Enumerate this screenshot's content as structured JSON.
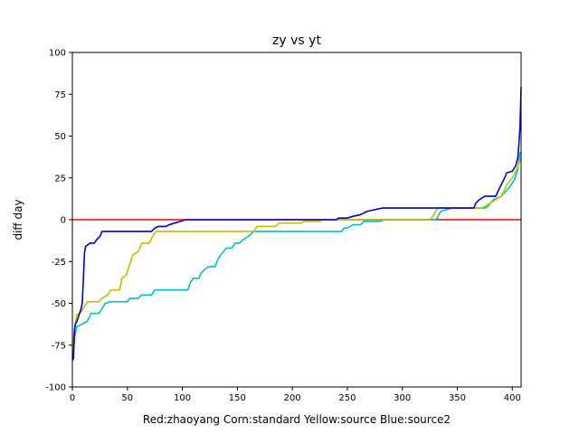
{
  "chart_data": {
    "type": "line",
    "title": "zy vs yt",
    "xlabel": "Red:zhaoyang Corn:standard Yellow:source Blue:source2",
    "ylabel": "diff day",
    "xlim": [
      0,
      408
    ],
    "ylim": [
      -100,
      100
    ],
    "xticks": [
      0,
      50,
      100,
      150,
      200,
      250,
      300,
      350,
      400
    ],
    "yticks": [
      -100,
      -75,
      -50,
      -25,
      0,
      25,
      50,
      75,
      100
    ],
    "grid": false,
    "series": [
      {
        "color": "#ff0000",
        "points": [
          [
            0,
            0
          ],
          [
            408,
            0
          ]
        ]
      },
      {
        "color": "#00bfbf",
        "points": [
          [
            0,
            -82
          ],
          [
            2,
            -70
          ],
          [
            4,
            -64
          ],
          [
            7,
            -63
          ],
          [
            10,
            -62
          ],
          [
            13,
            -61
          ],
          [
            15,
            -59
          ],
          [
            17,
            -56
          ],
          [
            24,
            -56
          ],
          [
            27,
            -53
          ],
          [
            30,
            -50
          ],
          [
            35,
            -49
          ],
          [
            50,
            -49
          ],
          [
            52,
            -47
          ],
          [
            60,
            -47
          ],
          [
            63,
            -45
          ],
          [
            72,
            -45
          ],
          [
            75,
            -42
          ],
          [
            105,
            -42
          ],
          [
            107,
            -38
          ],
          [
            110,
            -35
          ],
          [
            115,
            -35
          ],
          [
            117,
            -32
          ],
          [
            120,
            -30
          ],
          [
            124,
            -28
          ],
          [
            130,
            -28
          ],
          [
            132,
            -24
          ],
          [
            135,
            -21
          ],
          [
            140,
            -17
          ],
          [
            145,
            -17
          ],
          [
            148,
            -14
          ],
          [
            152,
            -14
          ],
          [
            155,
            -12
          ],
          [
            160,
            -10
          ],
          [
            165,
            -7
          ],
          [
            245,
            -7
          ],
          [
            247,
            -5
          ],
          [
            250,
            -5
          ],
          [
            255,
            -3
          ],
          [
            262,
            -3
          ],
          [
            265,
            -1
          ],
          [
            280,
            -1
          ],
          [
            283,
            0
          ],
          [
            330,
            0
          ],
          [
            332,
            1
          ],
          [
            333,
            3
          ],
          [
            335,
            5
          ],
          [
            340,
            6
          ],
          [
            345,
            7
          ],
          [
            375,
            7
          ],
          [
            378,
            8
          ],
          [
            380,
            10
          ],
          [
            383,
            12
          ],
          [
            390,
            14
          ],
          [
            394,
            17
          ],
          [
            398,
            20
          ],
          [
            402,
            24
          ],
          [
            405,
            30
          ],
          [
            407,
            40
          ]
        ]
      },
      {
        "color": "#bfbf00",
        "points": [
          [
            0,
            -80
          ],
          [
            2,
            -65
          ],
          [
            4,
            -57
          ],
          [
            8,
            -55
          ],
          [
            11,
            -52
          ],
          [
            14,
            -49
          ],
          [
            24,
            -49
          ],
          [
            27,
            -47
          ],
          [
            32,
            -45
          ],
          [
            35,
            -42
          ],
          [
            43,
            -42
          ],
          [
            45,
            -35
          ],
          [
            49,
            -33
          ],
          [
            52,
            -27
          ],
          [
            55,
            -21
          ],
          [
            60,
            -19
          ],
          [
            63,
            -14
          ],
          [
            70,
            -14
          ],
          [
            73,
            -10
          ],
          [
            76,
            -7
          ],
          [
            165,
            -7
          ],
          [
            168,
            -4
          ],
          [
            185,
            -4
          ],
          [
            188,
            -2
          ],
          [
            208,
            -2
          ],
          [
            210,
            -1
          ],
          [
            225,
            -1
          ],
          [
            228,
            0
          ],
          [
            325,
            0
          ],
          [
            328,
            2
          ],
          [
            330,
            5
          ],
          [
            333,
            7
          ],
          [
            372,
            7
          ],
          [
            375,
            8
          ],
          [
            380,
            10
          ],
          [
            385,
            12
          ],
          [
            390,
            14
          ],
          [
            395,
            21
          ],
          [
            400,
            25
          ],
          [
            404,
            30
          ],
          [
            408,
            37
          ]
        ]
      },
      {
        "color": "#0000cc",
        "points": [
          [
            0,
            -84
          ],
          [
            1,
            -83
          ],
          [
            2,
            -65
          ],
          [
            3,
            -62
          ],
          [
            4,
            -61
          ],
          [
            6,
            -57
          ],
          [
            8,
            -53
          ],
          [
            9,
            -50
          ],
          [
            10,
            -35
          ],
          [
            11,
            -20
          ],
          [
            12,
            -16
          ],
          [
            14,
            -15
          ],
          [
            16,
            -14
          ],
          [
            20,
            -14
          ],
          [
            22,
            -12
          ],
          [
            25,
            -10
          ],
          [
            27,
            -7
          ],
          [
            72,
            -7
          ],
          [
            75,
            -5
          ],
          [
            78,
            -4
          ],
          [
            85,
            -4
          ],
          [
            88,
            -3
          ],
          [
            93,
            -2
          ],
          [
            98,
            -1
          ],
          [
            103,
            0
          ],
          [
            240,
            0
          ],
          [
            242,
            1
          ],
          [
            250,
            1
          ],
          [
            255,
            2
          ],
          [
            262,
            3
          ],
          [
            268,
            5
          ],
          [
            275,
            6
          ],
          [
            282,
            7
          ],
          [
            365,
            7
          ],
          [
            367,
            10
          ],
          [
            370,
            12
          ],
          [
            375,
            14
          ],
          [
            385,
            14
          ],
          [
            387,
            17
          ],
          [
            390,
            21
          ],
          [
            393,
            25
          ],
          [
            395,
            28
          ],
          [
            400,
            29
          ],
          [
            403,
            32
          ],
          [
            405,
            37
          ],
          [
            406,
            45
          ],
          [
            407,
            55
          ],
          [
            408,
            79
          ]
        ]
      }
    ]
  }
}
